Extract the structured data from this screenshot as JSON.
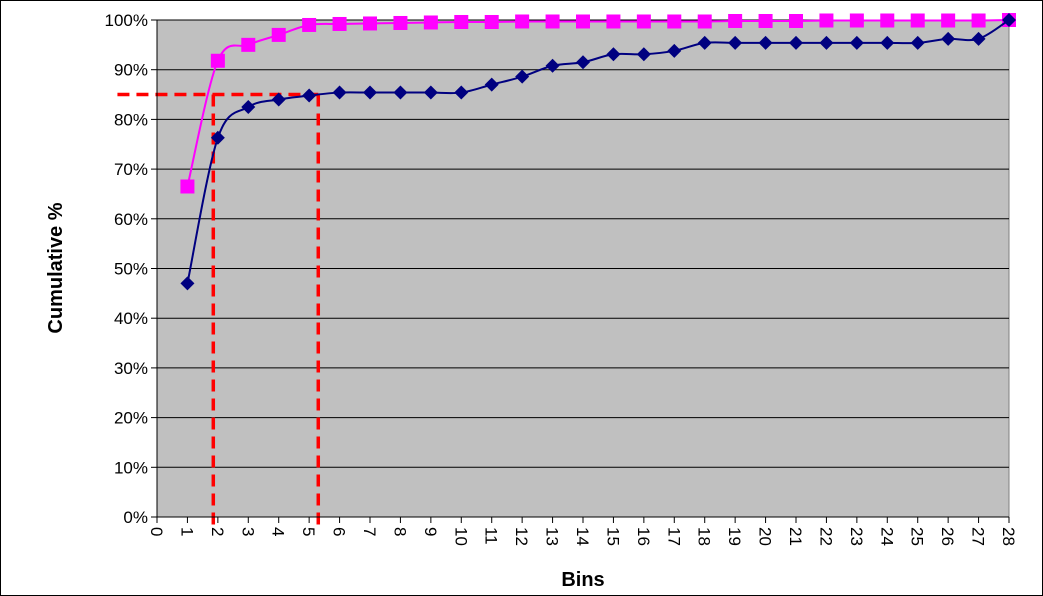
{
  "chart_data": {
    "type": "line",
    "title": "",
    "xlabel": "Bins",
    "ylabel": "Cumulative %",
    "xlim": [
      0,
      28
    ],
    "ylim": [
      0,
      100
    ],
    "x_ticks": [
      0,
      1,
      2,
      3,
      4,
      5,
      6,
      7,
      8,
      9,
      10,
      11,
      12,
      13,
      14,
      15,
      16,
      17,
      18,
      19,
      20,
      21,
      22,
      23,
      24,
      25,
      26,
      27,
      28
    ],
    "y_ticks": [
      0,
      10,
      20,
      30,
      40,
      50,
      60,
      70,
      80,
      90,
      100
    ],
    "y_tick_suffix": "%",
    "grid": "horizontal",
    "legend": "none",
    "x": [
      1,
      2,
      3,
      4,
      5,
      6,
      7,
      8,
      9,
      10,
      11,
      12,
      13,
      14,
      15,
      16,
      17,
      18,
      19,
      20,
      21,
      22,
      23,
      24,
      25,
      26,
      27,
      28
    ],
    "series": [
      {
        "marker": "square",
        "color": "#FF00FF",
        "values": [
          66.5,
          91.8,
          95.0,
          97.0,
          99.0,
          99.2,
          99.3,
          99.4,
          99.5,
          99.6,
          99.6,
          99.7,
          99.7,
          99.7,
          99.7,
          99.7,
          99.7,
          99.7,
          99.8,
          99.8,
          99.8,
          99.9,
          99.9,
          99.9,
          99.9,
          99.9,
          99.9,
          100.0
        ]
      },
      {
        "marker": "diamond",
        "color": "#000080",
        "values": [
          47.0,
          76.3,
          82.5,
          84.0,
          84.8,
          85.4,
          85.4,
          85.4,
          85.4,
          85.4,
          87.0,
          88.6,
          90.8,
          91.5,
          93.1,
          93.1,
          93.8,
          95.4,
          95.4,
          95.4,
          95.4,
          95.4,
          95.4,
          95.4,
          95.4,
          96.2,
          96.2,
          100.0
        ]
      }
    ],
    "reference_lines": {
      "color": "#FF0000",
      "style": "dashed",
      "horizontal_y": 85,
      "horizontal_x_range": [
        -1.3,
        5.3
      ],
      "vertical_x": [
        1.85,
        5.3
      ]
    },
    "plot_background": "#C0C0C0"
  }
}
